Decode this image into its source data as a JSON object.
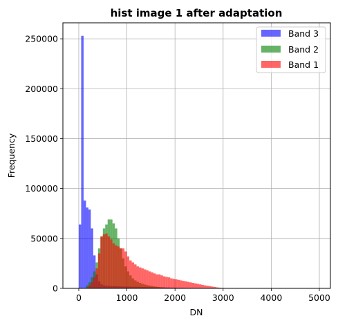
{
  "chart_data": {
    "type": "histogram",
    "title": "hist image 1 after adaptation",
    "xlabel": "DN",
    "ylabel": "Frequency",
    "xlim": [
      -330,
      5230
    ],
    "ylim": [
      0,
      266000
    ],
    "xticks": [
      0,
      1000,
      2000,
      3000,
      4000,
      5000
    ],
    "yticks": [
      0,
      50000,
      100000,
      150000,
      200000,
      250000
    ],
    "grid": true,
    "legend_position": "top-right",
    "bin_width": 50,
    "series": [
      {
        "name": "Band 3",
        "color": "#0000ff",
        "opacity": 0.6,
        "bins_start": 0,
        "values": [
          64000,
          253000,
          88000,
          81000,
          79000,
          60000,
          33000,
          14000,
          7000,
          4000,
          3000,
          2600,
          2400,
          2300,
          2200,
          2100,
          2000,
          1900,
          1800,
          1800,
          1700,
          1700,
          1600,
          1600,
          1500,
          1500,
          1400,
          1400,
          1300,
          1300,
          1200,
          1200,
          1100,
          1100,
          1000,
          1000,
          900,
          900,
          800,
          800,
          700,
          700,
          600,
          600,
          500,
          500,
          400,
          400,
          300,
          300
        ]
      },
      {
        "name": "Band 2",
        "color": "#008000",
        "opacity": 0.6,
        "bins_start": 150,
        "values": [
          3000,
          6000,
          11000,
          17000,
          26000,
          40000,
          52000,
          60000,
          64000,
          69000,
          69000,
          65000,
          60000,
          50000,
          40000,
          30000,
          22000,
          17000,
          13000,
          10000,
          8000,
          6500,
          5500,
          4500,
          3800,
          3200,
          2700,
          2300,
          1900,
          1600,
          1300,
          1100,
          900,
          700,
          550,
          450,
          350,
          250,
          180,
          120
        ]
      },
      {
        "name": "Band 1",
        "color": "#ff0000",
        "opacity": 0.6,
        "bins_start": 150,
        "values": [
          1000,
          3000,
          6000,
          11000,
          20000,
          35000,
          52000,
          54000,
          55000,
          52000,
          49000,
          45000,
          43000,
          42000,
          40000,
          40000,
          37000,
          32000,
          28000,
          26000,
          24000,
          22000,
          21000,
          20000,
          19000,
          18000,
          17000,
          16000,
          15000,
          14000,
          14000,
          13000,
          12000,
          11500,
          11000,
          10000,
          9500,
          9000,
          8500,
          8000,
          7500,
          7000,
          6500,
          6000,
          5500,
          5000,
          4500,
          4000,
          3500,
          3000,
          2600,
          2200,
          1800,
          1400,
          1000,
          700,
          400,
          200
        ]
      }
    ]
  }
}
